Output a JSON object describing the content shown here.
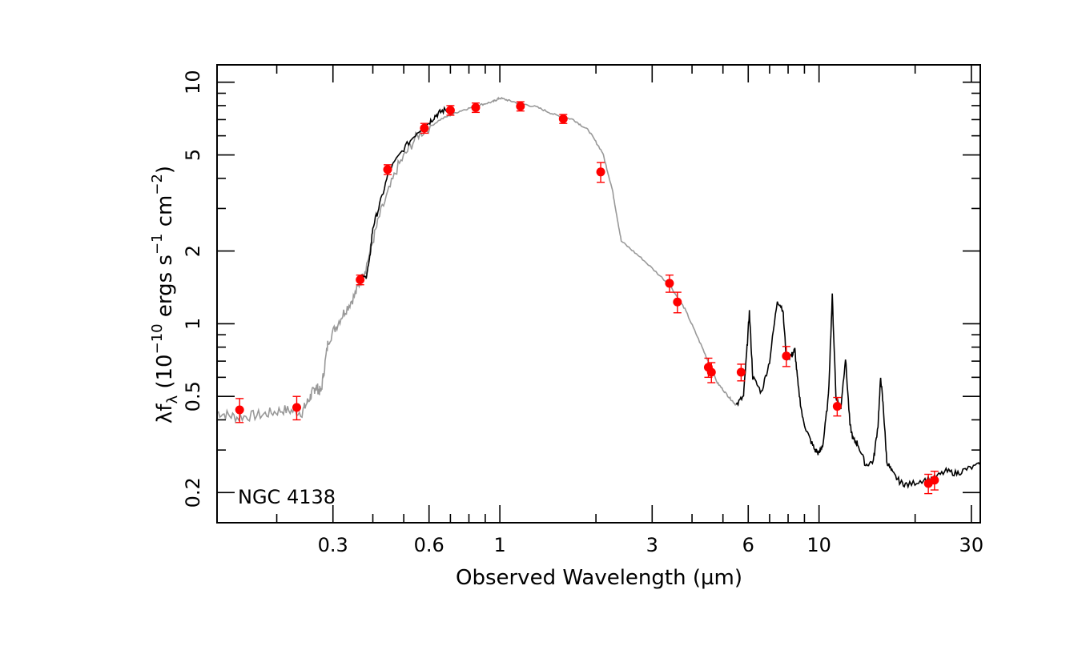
{
  "chart_data": {
    "type": "scatter",
    "title": "",
    "xlabel": "Observed Wavelength (µm)",
    "ylabel_parts": {
      "lead": "λf",
      "lead_sub": "λ",
      "units_open": " (10",
      "units_exp1": "−10",
      "units_mid": " ergs s",
      "units_exp2": "−1",
      "units_mid2": " cm",
      "units_exp3": "−2",
      "units_close": ")"
    },
    "x_scale": "log",
    "y_scale": "log",
    "xlim": [
      0.13,
      32
    ],
    "ylim": [
      0.15,
      11.8
    ],
    "xticks_labeled": [
      {
        "value": 0.3,
        "label": "0.3"
      },
      {
        "value": 0.6,
        "label": "0.6"
      },
      {
        "value": 1,
        "label": "1"
      },
      {
        "value": 3,
        "label": "3"
      },
      {
        "value": 6,
        "label": "6"
      },
      {
        "value": 10,
        "label": "10"
      },
      {
        "value": 30,
        "label": "30"
      }
    ],
    "yticks_labeled": [
      {
        "value": 0.2,
        "label": "0.2"
      },
      {
        "value": 0.5,
        "label": "0.5"
      },
      {
        "value": 1,
        "label": "1"
      },
      {
        "value": 2,
        "label": "2"
      },
      {
        "value": 5,
        "label": "5"
      },
      {
        "value": 10,
        "label": "10"
      }
    ],
    "annotation": "NGC 4138",
    "colors": {
      "photometry": "#ff0000",
      "model_spectrum": "#999999",
      "observed_spectrum": "#000000",
      "frame": "#000000"
    },
    "photometry": [
      {
        "x": 0.153,
        "y": 0.44,
        "err": 0.05
      },
      {
        "x": 0.231,
        "y": 0.45,
        "err": 0.05
      },
      {
        "x": 0.365,
        "y": 1.52,
        "err": 0.07
      },
      {
        "x": 0.445,
        "y": 4.35,
        "err": 0.2
      },
      {
        "x": 0.58,
        "y": 6.45,
        "err": 0.3
      },
      {
        "x": 0.7,
        "y": 7.65,
        "err": 0.35
      },
      {
        "x": 0.84,
        "y": 7.85,
        "err": 0.35
      },
      {
        "x": 1.16,
        "y": 7.95,
        "err": 0.35
      },
      {
        "x": 1.58,
        "y": 7.05,
        "err": 0.3
      },
      {
        "x": 2.07,
        "y": 4.25,
        "err": 0.4
      },
      {
        "x": 3.4,
        "y": 1.47,
        "err": 0.12
      },
      {
        "x": 3.6,
        "y": 1.23,
        "err": 0.12
      },
      {
        "x": 4.5,
        "y": 0.66,
        "err": 0.06
      },
      {
        "x": 4.6,
        "y": 0.63,
        "err": 0.06
      },
      {
        "x": 5.7,
        "y": 0.63,
        "err": 0.05
      },
      {
        "x": 7.9,
        "y": 0.735,
        "err": 0.07
      },
      {
        "x": 11.4,
        "y": 0.455,
        "err": 0.04
      },
      {
        "x": 22.0,
        "y": 0.218,
        "err": 0.02
      },
      {
        "x": 23.0,
        "y": 0.225,
        "err": 0.02
      }
    ],
    "model_spectrum": {
      "x": [
        0.13,
        0.15,
        0.18,
        0.21,
        0.24,
        0.255,
        0.265,
        0.275,
        0.29,
        0.32,
        0.35,
        0.38,
        0.42,
        0.48,
        0.55,
        0.65,
        0.75,
        0.85,
        0.95,
        1.0,
        1.1,
        1.3,
        1.5,
        1.7,
        1.9,
        2.1,
        2.25,
        2.4,
        2.8,
        3.4,
        3.8,
        4.3,
        4.8,
        5.2,
        5.5
      ],
      "y": [
        0.43,
        0.41,
        0.42,
        0.44,
        0.43,
        0.5,
        0.55,
        0.52,
        0.85,
        1.08,
        1.3,
        1.7,
        2.8,
        4.5,
        6.0,
        7.0,
        7.6,
        8.0,
        8.3,
        8.6,
        8.3,
        7.9,
        7.3,
        7.0,
        6.3,
        5.1,
        3.6,
        2.2,
        1.85,
        1.45,
        1.15,
        0.8,
        0.57,
        0.5,
        0.46
      ]
    },
    "observed_spectra": [
      {
        "x": [
          0.36,
          0.38,
          0.39,
          0.4,
          0.42,
          0.45,
          0.5,
          0.55,
          0.6,
          0.63,
          0.66,
          0.7
        ],
        "y": [
          1.55,
          1.55,
          1.8,
          2.5,
          3.1,
          4.3,
          5.3,
          6.2,
          6.8,
          7.3,
          7.6,
          7.8
        ]
      },
      {
        "x": [
          5.5,
          5.8,
          5.95,
          6.05,
          6.2,
          6.6,
          7.0,
          7.4,
          7.7,
          7.9,
          8.2,
          8.4,
          8.6,
          8.9,
          9.3,
          9.7,
          10.0,
          10.3,
          10.7,
          11.0,
          11.3,
          11.7,
          12.1,
          12.5,
          12.8,
          13.2,
          14.0,
          14.8,
          15.3,
          15.6,
          15.9,
          16.3,
          17.0,
          18.0,
          19.0,
          21.0,
          23.0,
          25.0,
          27.0,
          29.0,
          32.0
        ],
        "y": [
          0.46,
          0.5,
          0.8,
          1.12,
          0.6,
          0.52,
          0.7,
          1.25,
          1.15,
          0.72,
          0.74,
          0.78,
          0.55,
          0.4,
          0.34,
          0.3,
          0.29,
          0.32,
          0.5,
          1.3,
          0.5,
          0.45,
          0.72,
          0.38,
          0.33,
          0.32,
          0.26,
          0.27,
          0.38,
          0.6,
          0.45,
          0.27,
          0.24,
          0.22,
          0.215,
          0.225,
          0.23,
          0.245,
          0.24,
          0.25,
          0.26
        ]
      }
    ]
  }
}
